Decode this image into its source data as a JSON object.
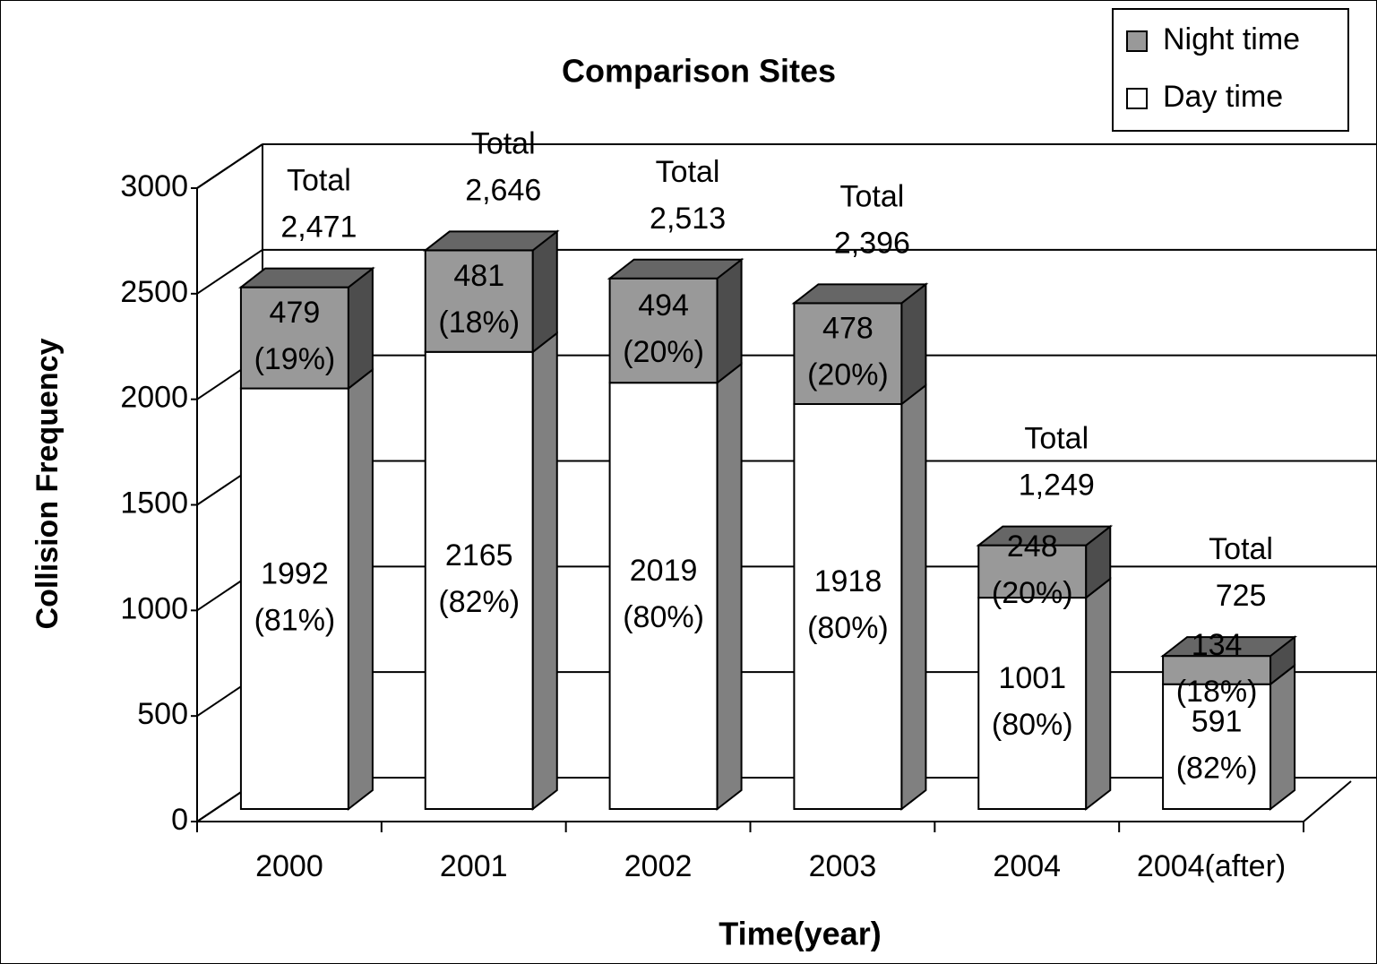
{
  "chart_data": {
    "type": "bar3d_stacked",
    "title": "Comparison Sites",
    "x_label": "Time(year)",
    "y_label": "Collision Frequency",
    "categories": [
      "2000",
      "2001",
      "2002",
      "2003",
      "2004",
      "2004(after)"
    ],
    "series": [
      {
        "name": "Day time",
        "color": "#ffffff",
        "values": [
          1992,
          2165,
          2019,
          1918,
          1001,
          591
        ],
        "value_labels": [
          [
            "1992",
            "(81%)"
          ],
          [
            "2165",
            "(82%)"
          ],
          [
            "2019",
            "(80%)"
          ],
          [
            "1918",
            "(80%)"
          ],
          [
            "1001",
            "(80%)"
          ],
          [
            "591",
            "(82%)"
          ]
        ]
      },
      {
        "name": "Night time",
        "color": "#999999",
        "values": [
          479,
          481,
          494,
          478,
          248,
          134
        ],
        "value_labels": [
          [
            "479",
            "(19%)"
          ],
          [
            "481",
            "(18%)"
          ],
          [
            "494",
            "(20%)"
          ],
          [
            "478",
            "(20%)"
          ],
          [
            "248",
            "(20%)"
          ],
          [
            "134",
            "(18%)"
          ]
        ]
      }
    ],
    "total_labels": [
      [
        "Total",
        "2,471"
      ],
      [
        "Total",
        "2,646"
      ],
      [
        "Total",
        "2,513"
      ],
      [
        "Total",
        "2,396"
      ],
      [
        "Total",
        "1,249"
      ],
      [
        "Total",
        "725"
      ]
    ],
    "ylim": [
      0,
      3000
    ],
    "yticks": [
      0,
      500,
      1000,
      1500,
      2000,
      2500,
      3000
    ],
    "grid": true,
    "legend": "top-right"
  }
}
